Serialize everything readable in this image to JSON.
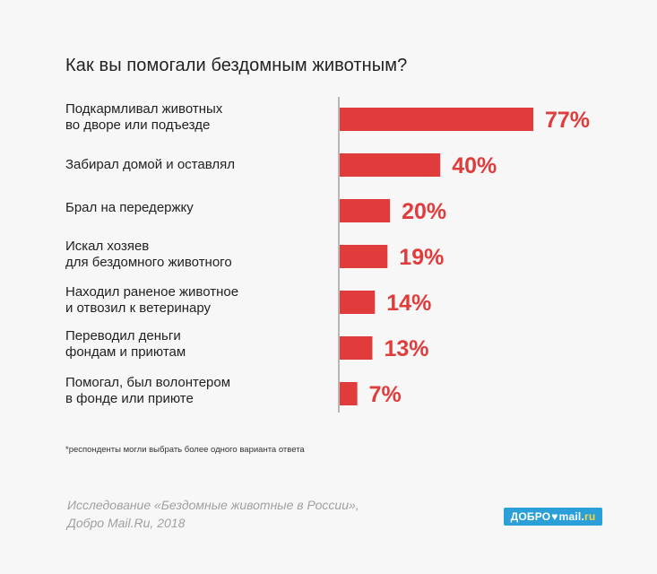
{
  "title": "Как вы помогали бездомным животным?",
  "chart_data": {
    "type": "bar",
    "orientation": "horizontal",
    "categories": [
      "Подкармливал животных\nво дворе или подъезде",
      "Забирал домой и оставлял",
      "Брал на передержку",
      "Искал хозяев\nдля бездомного животного",
      "Находил раненое животное\nи отвозил к ветеринару",
      "Переводил деньги\nфондам и приютам",
      "Помогал, был волонтером\nв фонде или приюте"
    ],
    "values": [
      77,
      40,
      20,
      19,
      14,
      13,
      7
    ],
    "value_labels": [
      "77%",
      "40%",
      "20%",
      "19%",
      "14%",
      "13%",
      "7%"
    ],
    "xlim": [
      0,
      100
    ],
    "grid": false,
    "legend": "none",
    "bar_color": "#e03c3c"
  },
  "note": "*респонденты могли выбрать более одного варианта ответа",
  "source": "Исследование «Бездомные животные в России»,\nДобро Mail.Ru, 2018",
  "logo": {
    "left": "ДОБРО",
    "heart": "♥",
    "mail": "mail",
    "dot": ".",
    "ru": "ru"
  },
  "colors": {
    "bar": "#e03c3c",
    "label": "#e03c3c",
    "logo_bg": "#2a9fd8"
  }
}
